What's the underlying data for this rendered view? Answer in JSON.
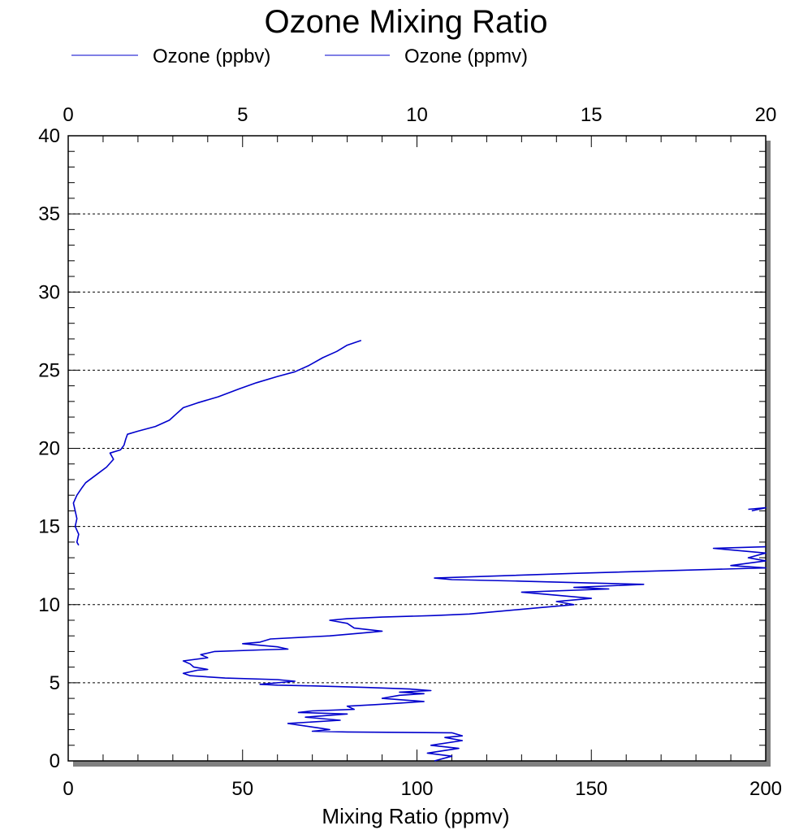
{
  "chart_data": {
    "type": "line",
    "title": "Ozone Mixing Ratio",
    "xlabel": "Mixing Ratio (ppmv)",
    "x_bottom_range": [
      0,
      200
    ],
    "x_bottom_ticks": [
      "0",
      "50",
      "100",
      "150",
      "200"
    ],
    "x_top_range": [
      0,
      20
    ],
    "x_top_ticks": [
      "0",
      "5",
      "10",
      "15",
      "20"
    ],
    "y_range": [
      0,
      40
    ],
    "y_ticks": [
      "0",
      "5",
      "10",
      "15",
      "20",
      "25",
      "30",
      "35",
      "40"
    ],
    "grid": "horizontal dashed",
    "legend": "top",
    "colors": {
      "series": "#0000cc",
      "shadow": "#808080",
      "grid": "#000000"
    },
    "series": [
      {
        "name": "Ozone (ppbv)",
        "axis": "bottom",
        "points": [
          [
            105,
            0
          ],
          [
            110,
            0.3
          ],
          [
            103,
            0.5
          ],
          [
            112,
            0.8
          ],
          [
            104,
            1
          ],
          [
            113,
            1.3
          ],
          [
            108,
            1.5
          ],
          [
            113,
            1.6
          ],
          [
            110,
            1.8
          ],
          [
            80,
            1.85
          ],
          [
            70,
            1.9
          ],
          [
            75,
            2.0
          ],
          [
            72,
            2.1
          ],
          [
            63,
            2.4
          ],
          [
            78,
            2.6
          ],
          [
            68,
            2.8
          ],
          [
            80,
            3.0
          ],
          [
            66,
            3.1
          ],
          [
            70,
            3.2
          ],
          [
            82,
            3.3
          ],
          [
            80,
            3.5
          ],
          [
            88,
            3.6
          ],
          [
            95,
            3.7
          ],
          [
            102,
            3.8
          ],
          [
            90,
            4.0
          ],
          [
            95,
            4.2
          ],
          [
            102,
            4.3
          ],
          [
            95,
            4.4
          ],
          [
            104,
            4.5
          ],
          [
            98,
            4.6
          ],
          [
            85,
            4.7
          ],
          [
            70,
            4.8
          ],
          [
            60,
            4.85
          ],
          [
            55,
            4.9
          ],
          [
            65,
            5.1
          ],
          [
            60,
            5.2
          ],
          [
            45,
            5.3
          ],
          [
            35,
            5.45
          ],
          [
            33,
            5.6
          ],
          [
            37,
            5.8
          ],
          [
            40,
            5.85
          ],
          [
            36,
            6.0
          ],
          [
            35,
            6.2
          ],
          [
            33,
            6.4
          ],
          [
            40,
            6.6
          ],
          [
            38,
            6.8
          ],
          [
            42,
            7.0
          ],
          [
            55,
            7.1
          ],
          [
            63,
            7.15
          ],
          [
            60,
            7.3
          ],
          [
            50,
            7.5
          ],
          [
            55,
            7.6
          ],
          [
            58,
            7.8
          ],
          [
            75,
            8.0
          ],
          [
            85,
            8.2
          ],
          [
            90,
            8.3
          ],
          [
            82,
            8.5
          ],
          [
            80,
            8.8
          ],
          [
            75,
            9.0
          ],
          [
            80,
            9.1
          ],
          [
            90,
            9.2
          ],
          [
            105,
            9.3
          ],
          [
            115,
            9.4
          ],
          [
            125,
            9.6
          ],
          [
            135,
            9.8
          ],
          [
            145,
            10.0
          ],
          [
            140,
            10.2
          ],
          [
            150,
            10.4
          ],
          [
            140,
            10.6
          ],
          [
            130,
            10.8
          ],
          [
            155,
            11.0
          ],
          [
            145,
            11.1
          ],
          [
            165,
            11.3
          ],
          [
            130,
            11.5
          ],
          [
            110,
            11.6
          ],
          [
            105,
            11.7
          ],
          [
            145,
            12.0
          ],
          [
            200,
            12.35
          ],
          [
            190,
            12.5
          ],
          [
            200,
            12.8
          ],
          [
            195,
            13.0
          ],
          [
            200,
            13.3
          ],
          [
            185,
            13.6
          ],
          [
            200,
            13.7
          ]
        ]
      },
      {
        "name": "Ozone (ppmv)",
        "axis": "top",
        "points": [
          [
            0.3,
            13.8
          ],
          [
            0.25,
            14
          ],
          [
            0.3,
            14.5
          ],
          [
            0.2,
            15
          ],
          [
            0.25,
            15.5
          ],
          [
            0.2,
            16
          ],
          [
            0.15,
            16.5
          ],
          [
            0.25,
            17
          ],
          [
            0.4,
            17.5
          ],
          [
            0.5,
            17.8
          ],
          [
            0.8,
            18.3
          ],
          [
            1.1,
            18.8
          ],
          [
            1.3,
            19.3
          ],
          [
            1.2,
            19.7
          ],
          [
            1.5,
            19.9
          ],
          [
            1.6,
            20.2
          ],
          [
            1.65,
            20.6
          ],
          [
            1.7,
            20.9
          ],
          [
            2.0,
            21.1
          ],
          [
            2.5,
            21.4
          ],
          [
            2.9,
            21.8
          ],
          [
            3.1,
            22.2
          ],
          [
            3.3,
            22.6
          ],
          [
            3.7,
            22.9
          ],
          [
            4.3,
            23.3
          ],
          [
            4.9,
            23.8
          ],
          [
            5.4,
            24.2
          ],
          [
            6.0,
            24.6
          ],
          [
            6.5,
            24.9
          ],
          [
            6.9,
            25.3
          ],
          [
            7.3,
            25.8
          ],
          [
            7.7,
            26.2
          ],
          [
            8.0,
            26.6
          ],
          [
            8.4,
            26.9
          ]
        ]
      },
      {
        "name": "Ozone (ppmv)",
        "axis": "top",
        "points": [
          [
            19.6,
            16.0
          ],
          [
            20,
            16.2
          ],
          [
            19.5,
            16.1
          ]
        ]
      }
    ]
  },
  "legend": {
    "items": [
      {
        "label": "Ozone (ppbv)"
      },
      {
        "label": "Ozone (ppmv)"
      }
    ]
  }
}
